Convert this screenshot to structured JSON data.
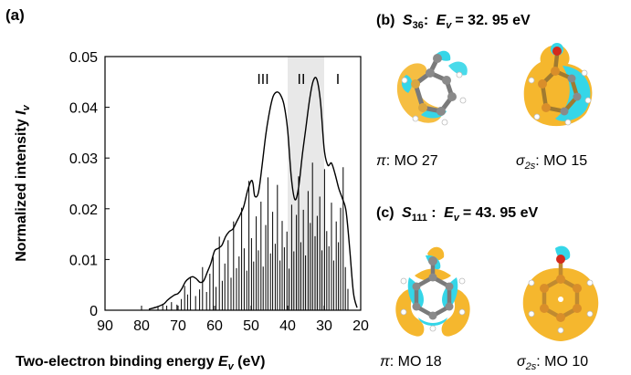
{
  "panel_a": {
    "label": "(a)",
    "regions": [
      "III",
      "II",
      "I"
    ]
  },
  "panel_b": {
    "label": "(b)",
    "state": "S",
    "state_sub": "36",
    "colon": ":",
    "energy_sym": "E",
    "energy_sub": "v",
    "energy_value": "= 32. 95 eV",
    "captions": [
      {
        "sym": "π",
        "sub": "",
        "text": ": MO 27"
      },
      {
        "sym": "σ",
        "sub": "2s",
        "text": ": MO 15"
      }
    ]
  },
  "panel_c": {
    "label": "(c)",
    "state": "S",
    "state_sub": "111",
    "colon": " :",
    "energy_sym": "E",
    "energy_sub": "v",
    "energy_value": "= 43. 95 eV",
    "captions": [
      {
        "sym": "π",
        "sub": "",
        "text": ": MO 18"
      },
      {
        "sym": "σ",
        "sub": "2s",
        "text": ": MO 10"
      }
    ]
  },
  "colors": {
    "orbital_orange": "#f5b72e",
    "orbital_cyan": "#35d6e8",
    "carbon": "#7a7a7a",
    "oxygen": "#d42a1c",
    "highlight_band": "#e8e8e8"
  },
  "chart_data": {
    "type": "line",
    "xlabel": "Two-electron binding energy E_v (eV)",
    "xlabel_parts": {
      "text": "Two-electron binding energy ",
      "sym": "E",
      "sub": "v",
      "unit": " (eV)"
    },
    "ylabel_parts": {
      "text": "Normalized intensity ",
      "sym": "I",
      "sub": "v"
    },
    "xlim": [
      90,
      20
    ],
    "ylim": [
      0,
      0.05
    ],
    "xticks": [
      90,
      80,
      70,
      60,
      50,
      40,
      30,
      20
    ],
    "yticks": [
      0,
      0.01,
      0.02,
      0.03,
      0.04,
      0.05
    ],
    "ytick_labels": [
      "0",
      "0.01",
      "0.02",
      "0.03",
      "0.04",
      "0.05"
    ],
    "highlight_band": [
      40,
      30
    ],
    "series": [
      {
        "style": "envelope",
        "x": [
          78,
          76,
          74,
          73,
          72,
          71,
          70,
          69,
          68,
          67,
          66,
          65,
          64,
          63,
          62,
          61,
          60,
          59,
          58,
          57,
          56,
          55,
          54,
          53,
          52,
          51,
          50,
          49.5,
          49,
          48,
          47,
          46,
          45,
          44,
          43,
          42,
          41,
          40,
          39,
          38,
          37,
          36,
          35,
          34,
          33,
          32,
          31,
          30,
          29,
          28,
          27,
          26,
          25,
          24,
          23,
          22,
          21
        ],
        "y": [
          0.0002,
          0.0006,
          0.0012,
          0.0019,
          0.0025,
          0.003,
          0.0033,
          0.0042,
          0.0056,
          0.0063,
          0.0066,
          0.0062,
          0.0055,
          0.0058,
          0.0075,
          0.0093,
          0.0117,
          0.0122,
          0.0128,
          0.0145,
          0.0155,
          0.016,
          0.0174,
          0.0188,
          0.0205,
          0.0235,
          0.0255,
          0.025,
          0.0225,
          0.0232,
          0.0285,
          0.0345,
          0.039,
          0.0421,
          0.043,
          0.0425,
          0.0405,
          0.0355,
          0.0262,
          0.0218,
          0.0242,
          0.0305,
          0.036,
          0.0415,
          0.0452,
          0.0455,
          0.041,
          0.0318,
          0.0286,
          0.029,
          0.0268,
          0.024,
          0.022,
          0.0195,
          0.012,
          0.0035,
          0.0005
        ]
      },
      {
        "style": "sticks",
        "x": [
          75.5,
          74.2,
          73.1,
          71.8,
          70.3,
          69.1,
          68.2,
          67.4,
          66.6,
          65.2,
          64.1,
          63.3,
          62.2,
          61.3,
          60.4,
          59.6,
          58.7,
          57.9,
          57.2,
          56.3,
          55.5,
          54.8,
          54.0,
          53.3,
          52.6,
          51.9,
          51.2,
          50.6,
          49.9,
          49.3,
          48.6,
          48.0,
          47.3,
          46.7,
          46.0,
          45.4,
          44.7,
          44.1,
          43.4,
          42.8,
          42.1,
          41.5,
          40.9,
          40.2,
          39.6,
          38.9,
          38.3,
          37.6,
          37.0,
          36.4,
          35.7,
          35.1,
          34.4,
          33.8,
          33.2,
          32.5,
          31.9,
          31.2,
          30.6,
          29.9,
          29.3,
          28.7,
          28.0,
          27.4,
          26.7,
          26.1,
          25.5,
          24.8,
          24.2,
          23.5
        ],
        "y": [
          0.0006,
          0.0012,
          0.0009,
          0.0016,
          0.0011,
          0.0022,
          0.0048,
          0.0031,
          0.0065,
          0.0028,
          0.0041,
          0.0085,
          0.0036,
          0.0072,
          0.0105,
          0.0046,
          0.0145,
          0.0058,
          0.0092,
          0.0138,
          0.0064,
          0.0175,
          0.0083,
          0.0106,
          0.0202,
          0.0122,
          0.0078,
          0.0255,
          0.0142,
          0.0096,
          0.0185,
          0.0118,
          0.0214,
          0.0086,
          0.0168,
          0.0262,
          0.0112,
          0.0194,
          0.0131,
          0.0247,
          0.0098,
          0.0176,
          0.0124,
          0.0155,
          0.0082,
          0.0208,
          0.0116,
          0.0188,
          0.0264,
          0.0134,
          0.0198,
          0.0108,
          0.0235,
          0.0172,
          0.0291,
          0.0146,
          0.0186,
          0.0224,
          0.0118,
          0.0278,
          0.0156,
          0.0126,
          0.0212,
          0.0098,
          0.0175,
          0.0134,
          0.0202,
          0.0282,
          0.0085,
          0.0042
        ]
      }
    ]
  }
}
